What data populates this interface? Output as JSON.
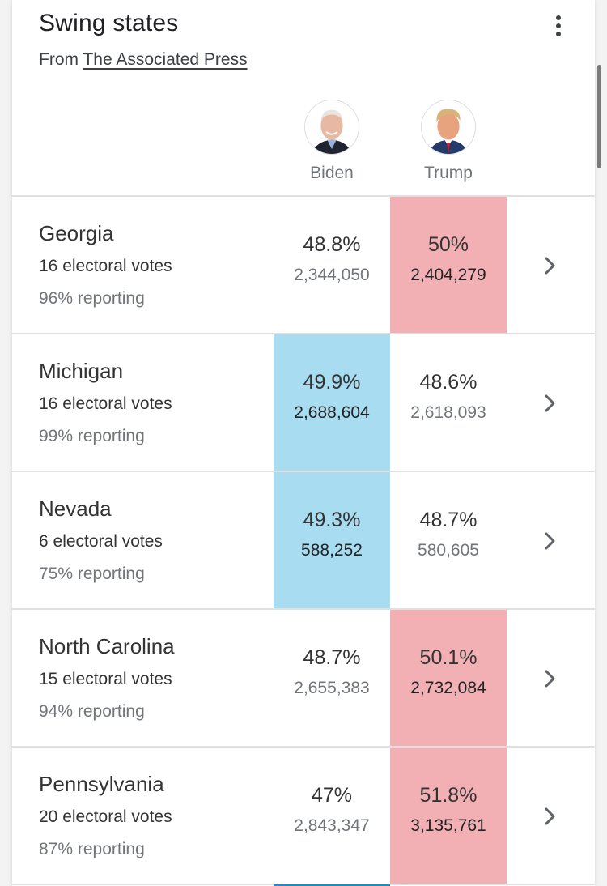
{
  "header": {
    "title": "Swing states",
    "source_prefix": "From",
    "source_link": "The Associated Press",
    "menu_icon": "more-vert-icon"
  },
  "candidates": [
    {
      "name": "Biden",
      "color": "#a8dcf0"
    },
    {
      "name": "Trump",
      "color": "#f2b0b5"
    }
  ],
  "rows": [
    {
      "state": "Georgia",
      "electoral": "16 electoral votes",
      "reporting": "96% reporting",
      "biden_pct": "48.8%",
      "biden_votes": "2,344,050",
      "trump_pct": "50%",
      "trump_votes": "2,404,279",
      "leader": "trump"
    },
    {
      "state": "Michigan",
      "electoral": "16 electoral votes",
      "reporting": "99% reporting",
      "biden_pct": "49.9%",
      "biden_votes": "2,688,604",
      "trump_pct": "48.6%",
      "trump_votes": "2,618,093",
      "leader": "biden"
    },
    {
      "state": "Nevada",
      "electoral": "6 electoral votes",
      "reporting": "75% reporting",
      "biden_pct": "49.3%",
      "biden_votes": "588,252",
      "trump_pct": "48.7%",
      "trump_votes": "580,605",
      "leader": "biden"
    },
    {
      "state": "North Carolina",
      "electoral": "15 electoral votes",
      "reporting": "94% reporting",
      "biden_pct": "48.7%",
      "biden_votes": "2,655,383",
      "trump_pct": "50.1%",
      "trump_votes": "2,732,084",
      "leader": "trump"
    },
    {
      "state": "Pennsylvania",
      "electoral": "20 electoral votes",
      "reporting": "87% reporting",
      "biden_pct": "47%",
      "biden_votes": "2,843,347",
      "trump_pct": "51.8%",
      "trump_votes": "3,135,761",
      "leader": "trump"
    }
  ],
  "colors": {
    "biden_lead": "#a8dcf0",
    "trump_lead": "#f2b0b5",
    "text_primary": "#333333",
    "text_secondary": "#70757a"
  }
}
